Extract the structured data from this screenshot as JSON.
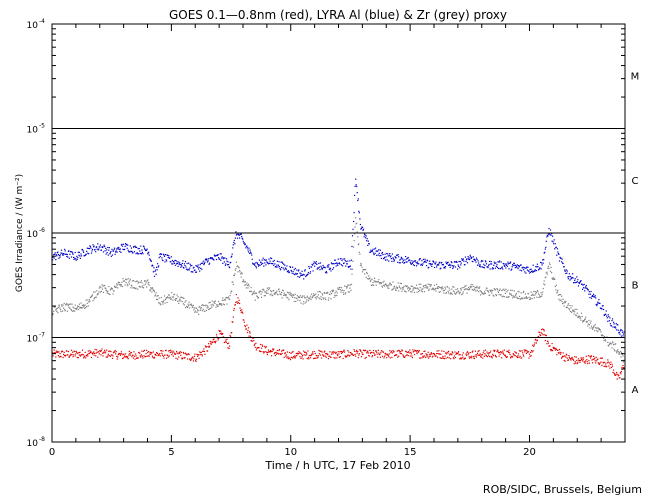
{
  "chart_data": {
    "type": "scatter",
    "title": "GOES 0.1—0.8nm (red), LYRA Al (blue) & Zr (grey) proxy",
    "xlabel": "Time / h UTC, 17 Feb 2010",
    "ylabel": "GOES Irradiance / (W m⁻²)",
    "xlim": [
      0,
      24
    ],
    "ylim": [
      1e-08,
      0.0001
    ],
    "y_scale": "log",
    "x_ticks": [
      0,
      5,
      10,
      15,
      20
    ],
    "x_tick_labels": [
      "0",
      "5",
      "10",
      "15",
      "20"
    ],
    "y_ticks": [
      1e-08,
      1e-07,
      1e-06,
      1e-05,
      0.0001
    ],
    "y_tick_bases": [
      "10",
      "10",
      "10",
      "10",
      "10"
    ],
    "y_tick_exponents": [
      "-8",
      "-7",
      "-6",
      "-5",
      "-4"
    ],
    "flare_class_lines": [
      1e-07,
      1e-06,
      1e-05
    ],
    "flare_classes": [
      {
        "label": "A",
        "y": 3.2e-08
      },
      {
        "label": "B",
        "y": 3.2e-07
      },
      {
        "label": "C",
        "y": 3.2e-06
      },
      {
        "label": "M",
        "y": 3.2e-05
      }
    ],
    "grid": false,
    "colors": {
      "red": "#e00000",
      "blue": "#0000c8",
      "grey": "#808080",
      "lines": "#000000"
    },
    "series": [
      {
        "color": "red",
        "x": [
          0,
          1,
          2,
          3,
          4,
          5,
          6,
          6.5,
          7,
          7.4,
          7.7,
          7.9,
          8.1,
          8.5,
          9,
          10,
          11,
          12,
          12.7,
          13,
          14,
          15,
          16,
          17,
          18,
          19,
          20,
          20.5,
          20.8,
          21.5,
          22,
          22.5,
          23,
          23.4,
          23.7,
          24
        ],
        "y": [
          7e-08,
          7e-08,
          7.2e-08,
          6.8e-08,
          7e-08,
          7e-08,
          6.5e-08,
          8e-08,
          1.1e-07,
          8.5e-08,
          2.5e-07,
          1.9e-07,
          1.3e-07,
          8.5e-08,
          7.5e-08,
          6.8e-08,
          7e-08,
          6.9e-08,
          7.2e-08,
          7e-08,
          7e-08,
          7.1e-08,
          7e-08,
          6.9e-08,
          7e-08,
          7.1e-08,
          7e-08,
          1.2e-07,
          8.5e-08,
          6.5e-08,
          6e-08,
          6.3e-08,
          6e-08,
          5.5e-08,
          4e-08,
          6e-08
        ]
      },
      {
        "color": "blue",
        "x": [
          0,
          0.5,
          1,
          1.5,
          2,
          2.5,
          3,
          3.5,
          4,
          4.3,
          4.5,
          5,
          5.5,
          6,
          6.5,
          7,
          7.4,
          7.7,
          7.9,
          8.2,
          8.5,
          9,
          9.5,
          10,
          10.5,
          11,
          11.5,
          12,
          12.5,
          12.7,
          12.9,
          13.3,
          14,
          15,
          16,
          17,
          17.5,
          18,
          19,
          20,
          20.5,
          20.8,
          21.2,
          21.6,
          22,
          22.3,
          22.6,
          23,
          23.3,
          23.6,
          24
        ],
        "y": [
          6e-07,
          6.5e-07,
          6e-07,
          7e-07,
          7.5e-07,
          6.5e-07,
          7.5e-07,
          7e-07,
          7e-07,
          4e-07,
          6e-07,
          5.5e-07,
          5e-07,
          4.5e-07,
          5.5e-07,
          6e-07,
          5e-07,
          1e-06,
          9e-07,
          7e-07,
          5e-07,
          5.5e-07,
          5e-07,
          4.5e-07,
          4e-07,
          5e-07,
          4.5e-07,
          5.5e-07,
          5e-07,
          3.5e-06,
          1.2e-06,
          7e-07,
          6e-07,
          5.5e-07,
          5e-07,
          5e-07,
          6e-07,
          5e-07,
          5e-07,
          4.5e-07,
          5e-07,
          1.1e-06,
          6e-07,
          4e-07,
          3.5e-07,
          3e-07,
          2.5e-07,
          2e-07,
          1.5e-07,
          1.3e-07,
          1e-07
        ]
      },
      {
        "color": "grey",
        "x": [
          0,
          0.5,
          1,
          1.5,
          2,
          2.5,
          3,
          3.5,
          4,
          4.5,
          5,
          5.5,
          6,
          6.5,
          7,
          7.4,
          7.7,
          7.9,
          8.2,
          8.5,
          9,
          9.5,
          10,
          10.5,
          11,
          11.5,
          12,
          12.5,
          12.7,
          12.9,
          13.3,
          14,
          15,
          16,
          17,
          17.5,
          18,
          19,
          20,
          20.5,
          20.8,
          21.2,
          21.6,
          22,
          22.3,
          22.6,
          23,
          23.3,
          23.6,
          24
        ],
        "y": [
          1.8e-07,
          2e-07,
          1.9e-07,
          2.2e-07,
          3e-07,
          2.8e-07,
          3.5e-07,
          3.2e-07,
          3.3e-07,
          2.2e-07,
          2.5e-07,
          2.2e-07,
          1.8e-07,
          2e-07,
          2.2e-07,
          2.3e-07,
          5e-07,
          4e-07,
          3e-07,
          2.5e-07,
          2.8e-07,
          2.7e-07,
          2.5e-07,
          2.3e-07,
          2.6e-07,
          2.5e-07,
          2.8e-07,
          3e-07,
          1.4e-06,
          5e-07,
          3.5e-07,
          3.2e-07,
          3e-07,
          3e-07,
          2.8e-07,
          3e-07,
          2.8e-07,
          2.7e-07,
          2.5e-07,
          2.7e-07,
          5e-07,
          2.5e-07,
          2e-07,
          1.7e-07,
          1.5e-07,
          1.3e-07,
          1.1e-07,
          9e-08,
          8e-08,
          6e-08
        ]
      }
    ]
  },
  "credit": "ROB/SIDC, Brussels, Belgium"
}
